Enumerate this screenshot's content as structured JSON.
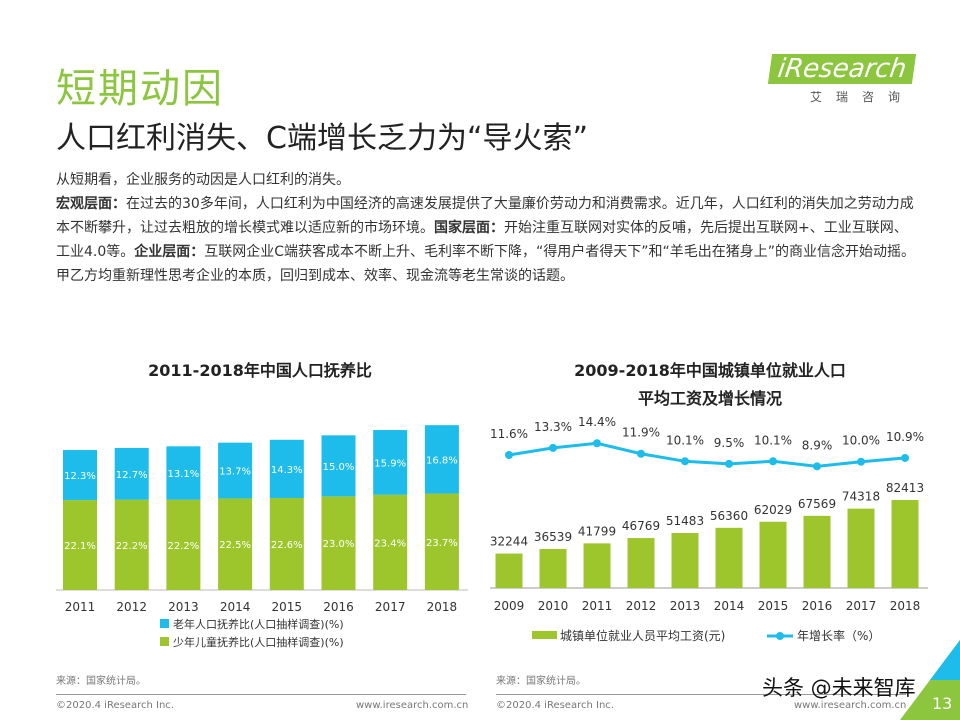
{
  "header": {
    "title": "短期动因",
    "subtitle": "人口红利消失、C端增长乏力为“导火索”",
    "logo": "iResearch",
    "logo_cn": "艾瑞咨询"
  },
  "body": {
    "line1": "从短期看，企业服务的动因是人口红利的消失。",
    "macro_label": "宏观层面：",
    "macro_text": "在过去的30多年间，人口红利为中国经济的高速发展提供了大量廉价劳动力和消费需求。近几年，人口红利的消失加之劳动力成本不断攀升，让过去粗放的增长模式难以适应新的市场环境。",
    "nation_label": "国家层面：",
    "nation_text": "开始注重互联网对实体的反哺，先后提出互联网+、工业互联网、工业4.0等。",
    "enterprise_label": "企业层面：",
    "enterprise_text": "互联网企业C端获客成本不断上升、毛利率不断下降，“得用户者得天下”和“羊毛出在猪身上”的商业信念开始动摇。甲乙方均重新理性思考企业的本质，回归到成本、效率、现金流等老生常谈的话题。"
  },
  "colors": {
    "green": "#9dc62d",
    "blue": "#1ebcea",
    "title_green": "#8cc63f"
  },
  "chart_data": [
    {
      "type": "bar",
      "stacked": true,
      "title": "2011-2018年中国人口抚养比",
      "categories": [
        "2011",
        "2012",
        "2013",
        "2014",
        "2015",
        "2016",
        "2017",
        "2018"
      ],
      "series": [
        {
          "name": "少年儿童抚养比(人口抽样调查)(%)",
          "color": "#9dc62d",
          "values": [
            22.1,
            22.2,
            22.2,
            22.5,
            22.6,
            23.0,
            23.4,
            23.7
          ]
        },
        {
          "name": "老年人口抚养比(人口抽样调查)(%)",
          "color": "#1ebcea",
          "values": [
            12.3,
            12.7,
            13.1,
            13.7,
            14.3,
            15.0,
            15.9,
            16.8
          ]
        }
      ],
      "legend": "bottom",
      "source": "来源：国家统计局。"
    },
    {
      "type": "bar+line",
      "title_line1": "2009-2018年中国城镇单位就业人口",
      "title_line2": "平均工资及增长情况",
      "categories": [
        "2009",
        "2010",
        "2011",
        "2012",
        "2013",
        "2014",
        "2015",
        "2016",
        "2017",
        "2018"
      ],
      "bar_series": {
        "name": "城镇单位就业人员平均工资(元)",
        "color": "#9dc62d",
        "values": [
          32244,
          36539,
          41799,
          46769,
          51483,
          56360,
          62029,
          67569,
          74318,
          82413
        ]
      },
      "line_series": {
        "name": "年增长率（%）",
        "color": "#1ebcea",
        "values": [
          11.6,
          13.3,
          14.4,
          11.9,
          10.1,
          9.5,
          10.1,
          8.9,
          10.0,
          10.9
        ]
      },
      "legend": "bottom",
      "source": "来源：国家统计局。"
    }
  ],
  "footer": {
    "copyright": "©2020.4 iResearch Inc.",
    "url": "www.iresearch.com.cn",
    "page": "13",
    "watermark": "头条 @未来智库"
  }
}
